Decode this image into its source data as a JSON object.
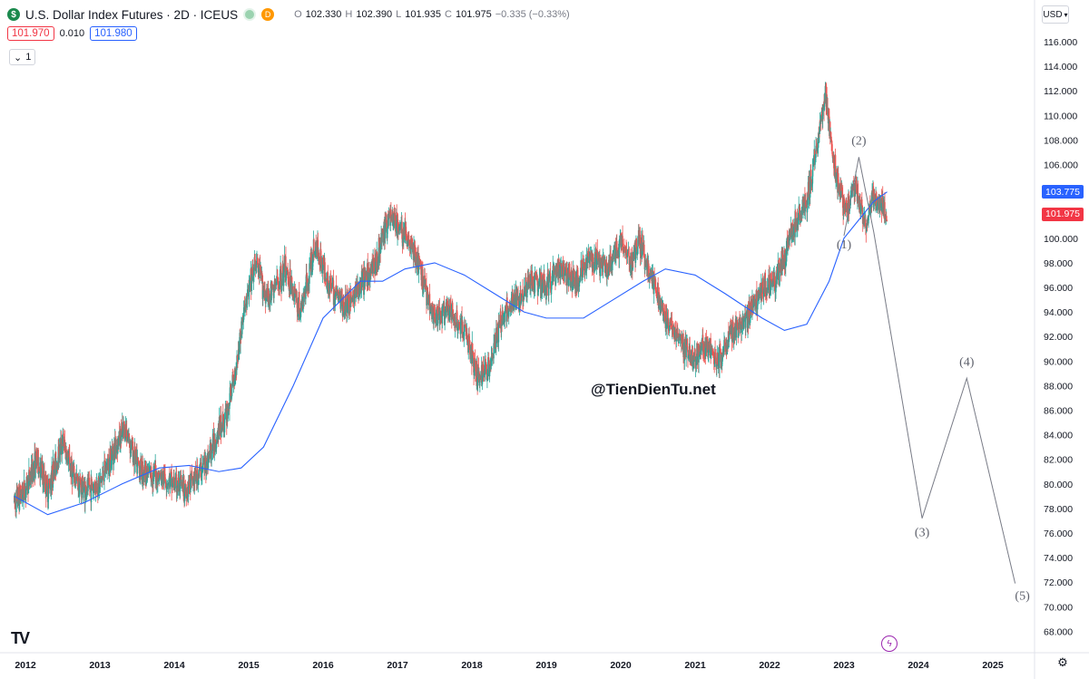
{
  "header": {
    "symbol_title": "U.S. Dollar Index Futures · 2D · ICEUS",
    "logo_letter": "$",
    "d_badge": "D",
    "ohlc": {
      "o_label": "O",
      "o": "102.330",
      "h_label": "H",
      "h": "102.390",
      "l_label": "L",
      "l": "101.935",
      "c_label": "C",
      "c": "101.975",
      "change": "−0.335 (−0.33%)"
    },
    "bid": "101.970",
    "spread": "0.010",
    "ask": "101.980",
    "collapse_count": "1",
    "currency": "USD"
  },
  "watermark": "@TienDienTu.net",
  "price_labels": {
    "ma_value": "103.775",
    "last_price": "101.975"
  },
  "colors": {
    "up": "#26a69a",
    "down": "#ef5350",
    "ma": "#2962ff",
    "wave": "#787b86",
    "ma_label_bg": "#2962ff",
    "price_label_bg": "#f23645"
  },
  "chart_data": {
    "type": "line",
    "y_axis_ticks": [
      "116.000",
      "114.000",
      "112.000",
      "110.000",
      "108.000",
      "106.000",
      "104.000",
      "102.000",
      "100.000",
      "98.000",
      "96.000",
      "94.000",
      "92.000",
      "90.000",
      "88.000",
      "86.000",
      "84.000",
      "82.000",
      "80.000",
      "78.000",
      "76.000",
      "74.000",
      "72.000",
      "70.000",
      "68.000"
    ],
    "x_axis_ticks": [
      "2012",
      "2013",
      "2014",
      "2015",
      "2016",
      "2017",
      "2018",
      "2019",
      "2020",
      "2021",
      "2022",
      "2023",
      "2024",
      "2025"
    ],
    "ylim": [
      67,
      117
    ],
    "xlim": [
      2011.8,
      2025.6
    ],
    "series": [
      {
        "kind": "candlestick",
        "x": [
          2011.85,
          2012.0,
          2012.15,
          2012.3,
          2012.5,
          2012.65,
          2012.8,
          2013.0,
          2013.2,
          2013.35,
          2013.5,
          2013.65,
          2013.8,
          2014.0,
          2014.15,
          2014.3,
          2014.45,
          2014.6,
          2014.7,
          2014.8,
          2014.95,
          2015.1,
          2015.25,
          2015.5,
          2015.7,
          2015.9,
          2016.1,
          2016.3,
          2016.5,
          2016.7,
          2016.9,
          2017.0,
          2017.15,
          2017.3,
          2017.5,
          2017.7,
          2017.9,
          2018.1,
          2018.25,
          2018.4,
          2018.6,
          2018.8,
          2019.0,
          2019.2,
          2019.4,
          2019.6,
          2019.8,
          2020.0,
          2020.15,
          2020.25,
          2020.4,
          2020.6,
          2020.8,
          2021.0,
          2021.1,
          2021.3,
          2021.5,
          2021.7,
          2021.9,
          2022.1,
          2022.3,
          2022.5,
          2022.65,
          2022.75,
          2022.85,
          2022.95,
          2023.05,
          2023.15,
          2023.3,
          2023.4,
          2023.5,
          2023.58
        ],
        "close": [
          78.5,
          79.5,
          82.0,
          79.5,
          83.5,
          80.5,
          79.5,
          80.0,
          83.0,
          84.5,
          81.5,
          80.8,
          80.6,
          80.0,
          79.5,
          80.6,
          82.0,
          84.5,
          85.5,
          88.5,
          94.5,
          98.0,
          95.0,
          97.5,
          94.0,
          99.5,
          96.0,
          94.5,
          96.0,
          98.0,
          102.0,
          101.0,
          100.0,
          97.5,
          93.5,
          94.0,
          92.5,
          88.5,
          90.0,
          93.5,
          95.0,
          96.5,
          96.0,
          97.5,
          96.5,
          98.5,
          97.5,
          99.5,
          98.0,
          100.0,
          97.0,
          93.5,
          91.5,
          90.0,
          91.5,
          90.0,
          92.5,
          93.5,
          96.0,
          96.5,
          100.5,
          103.0,
          108.0,
          112.0,
          107.0,
          103.5,
          102.5,
          104.5,
          101.0,
          103.5,
          102.5,
          101.975
        ]
      },
      {
        "name": "",
        "kind": "moving_average",
        "x": [
          2011.85,
          2012.3,
          2012.8,
          2013.3,
          2013.8,
          2014.2,
          2014.6,
          2014.9,
          2015.2,
          2015.6,
          2016.0,
          2016.5,
          2016.8,
          2017.1,
          2017.5,
          2017.9,
          2018.3,
          2018.7,
          2019.0,
          2019.5,
          2019.9,
          2020.3,
          2020.6,
          2021.0,
          2021.4,
          2021.9,
          2022.2,
          2022.5,
          2022.8,
          2023.0,
          2023.2,
          2023.4,
          2023.58
        ],
        "y": [
          79.0,
          77.5,
          78.5,
          80.0,
          81.3,
          81.5,
          81.0,
          81.3,
          83.0,
          88.0,
          93.5,
          96.5,
          96.5,
          97.5,
          98.0,
          97.0,
          95.5,
          94.0,
          93.5,
          93.5,
          95.0,
          96.5,
          97.5,
          97.0,
          95.5,
          93.5,
          92.5,
          93.0,
          96.5,
          100.0,
          101.5,
          103.0,
          103.775
        ]
      },
      {
        "name": "",
        "kind": "elliott_wave_projection",
        "x": [
          2023.0,
          2023.2,
          2023.4,
          2024.05,
          2024.65,
          2025.3
        ],
        "y": [
          100.2,
          106.6,
          100.5,
          77.2,
          88.6,
          71.9
        ],
        "labels": [
          "(1)",
          "(2)",
          "",
          "(3)",
          "(4)",
          "(5)"
        ]
      }
    ]
  }
}
